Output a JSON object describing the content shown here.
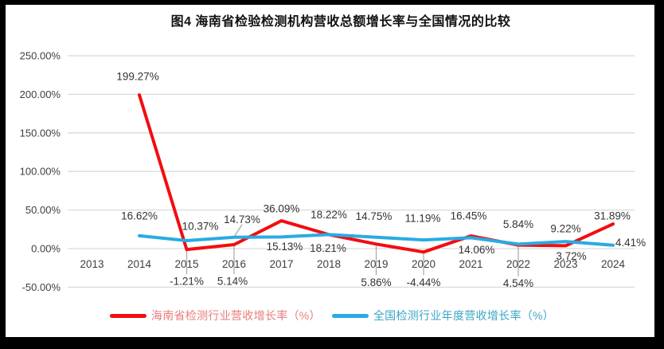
{
  "colors": {
    "hainan": "#F20D11",
    "national": "#29ABE2",
    "hainan_text": "#E97C7C",
    "national_text": "#3BA6C6",
    "grid": "#D9D9D9",
    "leader": "#A6A6A6",
    "tick_text": "#3F3F3F",
    "label_text": "#333333",
    "frame": "#000000",
    "background": "#FFFFFF"
  },
  "legend": {
    "items": [
      {
        "id": "hainan",
        "label": "海南省检测行业营收增长率（%）"
      },
      {
        "id": "national",
        "label": "全国检测行业年度营收增长率（%）"
      }
    ]
  },
  "chart_data": {
    "type": "line",
    "title": "图4 海南省检验检测机构营收总额增长率与全国情况的比较",
    "categories": [
      2013,
      2014,
      2015,
      2016,
      2017,
      2018,
      2019,
      2020,
      2021,
      2022,
      2023,
      2024
    ],
    "ylim": [
      -50,
      250
    ],
    "grid": "horizontal",
    "legend_position": "bottom",
    "y_ticks": [
      {
        "value": 250,
        "label": "250.00%"
      },
      {
        "value": 200,
        "label": "200.00%"
      },
      {
        "value": 150,
        "label": "150.00%"
      },
      {
        "value": 100,
        "label": "100.00%"
      },
      {
        "value": 50,
        "label": "50.00%"
      },
      {
        "value": 0,
        "label": "0.00%"
      },
      {
        "value": -50,
        "label": "-50.00%"
      }
    ],
    "series": [
      {
        "id": "hainan",
        "name": "海南省检测行业营收增长率（%）",
        "color": "#F20D11",
        "points": [
          {
            "x": 2014,
            "y": 199.27,
            "label": "199.27%",
            "dx": -2,
            "dy": -23
          },
          {
            "x": 2015,
            "y": -1.21,
            "label": "-1.21%",
            "dx": 0,
            "dy": 40,
            "leader": "v"
          },
          {
            "x": 2016,
            "y": 5.14,
            "label": "5.14%",
            "dx": -2,
            "dy": 46,
            "leader": "v"
          },
          {
            "x": 2017,
            "y": 36.09,
            "label": "36.09%",
            "dx": 0,
            "dy": -15
          },
          {
            "x": 2018,
            "y": 18.21,
            "label": "18.21%",
            "dx": -1,
            "dy": 17
          },
          {
            "x": 2019,
            "y": 5.86,
            "label": "5.86%",
            "dx": 0,
            "dy": 48,
            "leader": "v"
          },
          {
            "x": 2020,
            "y": -4.44,
            "label": "-4.44%",
            "dx": 0,
            "dy": 38,
            "leader": "v"
          },
          {
            "x": 2021,
            "y": 16.45,
            "label": "16.45%",
            "dx": -3,
            "dy": -25
          },
          {
            "x": 2022,
            "y": 4.54,
            "label": "4.54%",
            "dx": 0,
            "dy": 48,
            "leader": "v"
          },
          {
            "x": 2023,
            "y": 3.72,
            "label": "3.72%",
            "dx": 7,
            "dy": 13
          },
          {
            "x": 2024,
            "y": 31.89,
            "label": "31.89%",
            "dx": -1,
            "dy": -10
          }
        ]
      },
      {
        "id": "national",
        "name": "全国检测行业年度营收增长率（%）",
        "color": "#29ABE2",
        "points": [
          {
            "x": 2014,
            "y": 16.62,
            "label": "16.62%",
            "dx": 0,
            "dy": -25
          },
          {
            "x": 2015,
            "y": 10.37,
            "label": "10.37%",
            "dx": 17,
            "dy": -18
          },
          {
            "x": 2016,
            "y": 14.73,
            "label": "14.73%",
            "dx": 10,
            "dy": -22,
            "leader": "d"
          },
          {
            "x": 2017,
            "y": 15.13,
            "label": "15.13%",
            "dx": 4,
            "dy": 12
          },
          {
            "x": 2018,
            "y": 18.22,
            "label": "18.22%",
            "dx": 0,
            "dy": -25
          },
          {
            "x": 2019,
            "y": 14.75,
            "label": "14.75%",
            "dx": -3,
            "dy": -26
          },
          {
            "x": 2020,
            "y": 11.19,
            "label": "11.19%",
            "dx": -1,
            "dy": -27
          },
          {
            "x": 2021,
            "y": 14.06,
            "label": "14.06%",
            "dx": 7,
            "dy": 15
          },
          {
            "x": 2022,
            "y": 5.84,
            "label": "5.84%",
            "dx": 0,
            "dy": -25
          },
          {
            "x": 2023,
            "y": 9.22,
            "label": "9.22%",
            "dx": 0,
            "dy": -16
          },
          {
            "x": 2024,
            "y": 4.41,
            "label": "4.41%",
            "dx": 22,
            "dy": -3
          }
        ]
      }
    ]
  }
}
